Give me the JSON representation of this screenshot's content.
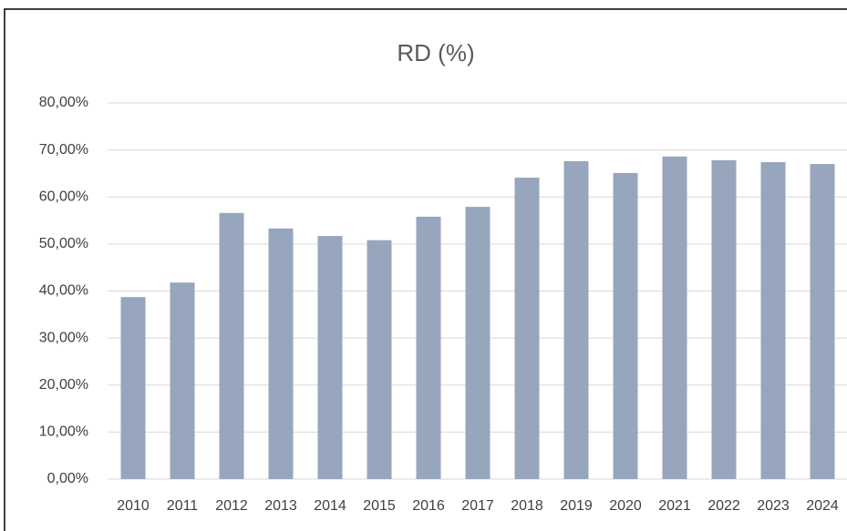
{
  "chart_data": {
    "type": "bar",
    "title": "RD (%)",
    "categories": [
      "2010",
      "2011",
      "2012",
      "2013",
      "2014",
      "2015",
      "2016",
      "2017",
      "2018",
      "2019",
      "2020",
      "2021",
      "2022",
      "2023",
      "2024"
    ],
    "values": [
      38.7,
      41.8,
      56.6,
      53.3,
      51.7,
      50.8,
      55.8,
      57.9,
      64.1,
      67.6,
      65.1,
      68.6,
      67.8,
      67.4,
      67.0
    ],
    "color": "#97a6bc",
    "ylim": [
      0,
      80
    ],
    "yticks": [
      {
        "value": 0,
        "label": "0,00%"
      },
      {
        "value": 10,
        "label": "10,00%"
      },
      {
        "value": 20,
        "label": "20,00%"
      },
      {
        "value": 30,
        "label": "30,00%"
      },
      {
        "value": 40,
        "label": "40,00%"
      },
      {
        "value": 50,
        "label": "50,00%"
      },
      {
        "value": 60,
        "label": "60,00%"
      },
      {
        "value": 70,
        "label": "70,00%"
      },
      {
        "value": 80,
        "label": "80,00%"
      }
    ],
    "grid": true
  }
}
